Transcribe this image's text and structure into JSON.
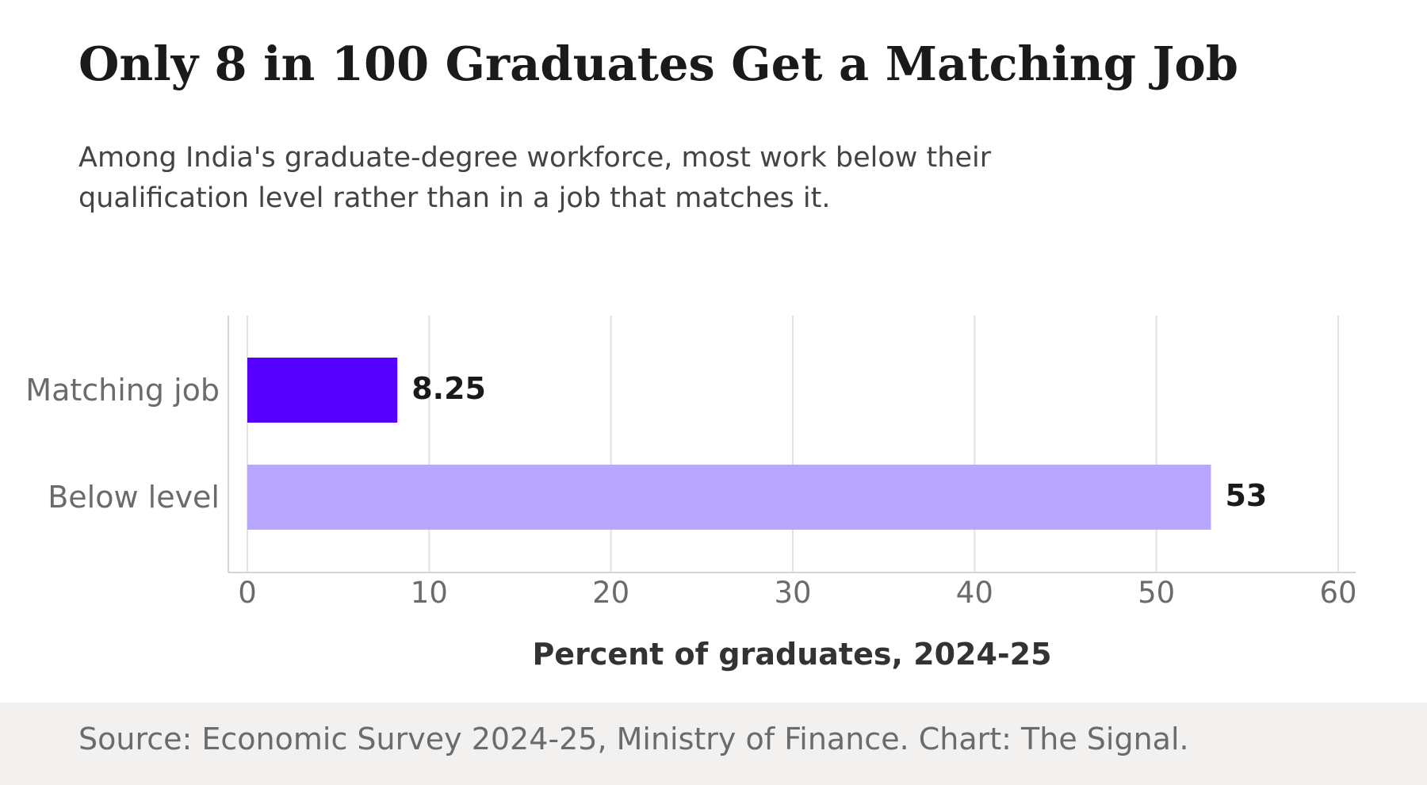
{
  "header": {
    "title": "Only 8 in 100 Graduates Get a Matching Job",
    "subtitle": "Among India's graduate-degree workforce, most work below their qualification level rather than in a job that matches it."
  },
  "footer": {
    "source": "Source: Economic Survey 2024-25, Ministry of Finance. Chart: The Signal."
  },
  "chart_data": {
    "type": "bar",
    "orientation": "horizontal",
    "title": "Only 8 in 100 Graduates Get a Matching Job",
    "subtitle": "Among India's graduate-degree workforce, most work below their qualification level rather than in a job that matches it.",
    "categories": [
      "Matching job",
      "Below level"
    ],
    "values": [
      8.25,
      53
    ],
    "value_labels": [
      "8.25",
      "53"
    ],
    "colors": [
      "#5500ff",
      "#b8a6ff"
    ],
    "xlabel": "Percent of graduates, 2024-25",
    "ylabel": "",
    "xlim": [
      0,
      60
    ],
    "xticks": [
      0,
      10,
      20,
      30,
      40,
      50,
      60
    ],
    "grid": "vertical",
    "legend": "none"
  }
}
